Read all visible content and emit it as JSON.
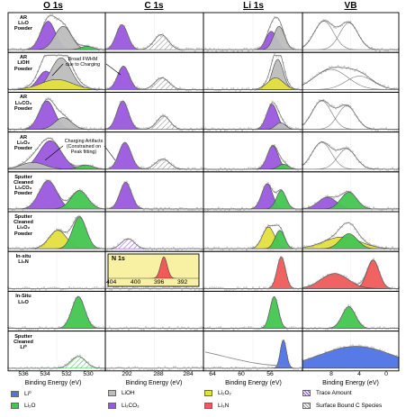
{
  "columns": [
    "O 1s",
    "C 1s",
    "Li 1s",
    "VB"
  ],
  "rows": [
    {
      "label": "AR\nLi₂O\nPowder"
    },
    {
      "label": "AR\nLiOH\nPowder"
    },
    {
      "label": "AR\nLi₂CO₃\nPowder"
    },
    {
      "label": "AR\nLi₂O₂\nPowder"
    },
    {
      "label": "Sputter\nCleaned\nLi₂CO₃\nPowder"
    },
    {
      "label": "Sputter\nCleaned\nLi₂O₂\nPowder"
    },
    {
      "label": "In-situ\nLi₃N"
    },
    {
      "label": "In-Situ\nLi₂O"
    },
    {
      "label": "Sputter\nCleaned\nLi⁰"
    }
  ],
  "annotations": {
    "broad_fwhm": "Broad FWHM\ndue to Charging",
    "charging_artifacts": "Charging Artifacts\n(Constrained on\nPeak fitting)"
  },
  "inset": {
    "title": "N 1s",
    "ticks": [
      "404",
      "400",
      "396",
      "392"
    ]
  },
  "axes": [
    {
      "ticks": [
        "536",
        "534",
        "532",
        "530"
      ],
      "xlabel": "Binding Energy (eV)"
    },
    {
      "ticks": [
        "292",
        "288",
        "284"
      ],
      "xlabel": "Binding Energy (eV)"
    },
    {
      "ticks": [
        "64",
        "60",
        "56"
      ],
      "xlabel": "Binding Energy (eV)"
    },
    {
      "ticks": [
        "8",
        "4",
        "0"
      ],
      "xlabel": "Binding Energy (eV)"
    }
  ],
  "legend": [
    {
      "label": "Li⁰",
      "color": "#4f73e6",
      "type": "solid"
    },
    {
      "label": "LiOH",
      "color": "#bdbdbd",
      "type": "solid"
    },
    {
      "label": "Li₂O₂",
      "color": "#e3df3f",
      "type": "solid"
    },
    {
      "label": "Trace Amount",
      "color": "#8d52e0",
      "type": "hatch"
    },
    {
      "label": "Li₂O",
      "color": "#43c651",
      "type": "solid"
    },
    {
      "label": "Li₂CO₃",
      "color": "#9b58df",
      "type": "solid"
    },
    {
      "label": "Li₃N",
      "color": "#f05a5a",
      "type": "solid"
    },
    {
      "label": "Surface Bound C Species",
      "color": "#9a9a9a",
      "type": "hatch"
    }
  ],
  "colors": {
    "li0": "#4f73e6",
    "lioh": "#bdbdbd",
    "li2o2": "#e3df3f",
    "li2o": "#43c651",
    "li2co3": "#9b58df",
    "li3n": "#f05a5a",
    "inset_bg": "#f8f1a4",
    "envelope": "#555555"
  },
  "chart_data": {
    "type": "area",
    "panels_layout": "9 rows x 4 columns of XPS spectra",
    "columns": [
      {
        "name": "O 1s",
        "xlim": [
          537.5,
          528.5
        ],
        "x_reversed": true
      },
      {
        "name": "C 1s",
        "xlim": [
          295,
          282
        ],
        "x_reversed": true
      },
      {
        "name": "Li 1s",
        "xlim": [
          66,
          52
        ],
        "x_reversed": true
      },
      {
        "name": "VB",
        "xlim": [
          12.5,
          -1
        ],
        "x_reversed": true
      }
    ],
    "peaks": [
      {
        "row": 0,
        "col": 0,
        "components": [
          {
            "species": "li2co3",
            "center": 533.8,
            "fwhm": 1.6,
            "amp": 0.85
          },
          {
            "species": "lioh",
            "center": 532.4,
            "fwhm": 1.8,
            "amp": 0.7
          },
          {
            "species": "li2o",
            "center": 530.2,
            "fwhm": 1.4,
            "amp": 0.1
          }
        ]
      },
      {
        "row": 0,
        "col": 1,
        "components": [
          {
            "species": "li2co3",
            "center": 292.8,
            "fwhm": 1.8,
            "amp": 0.75
          },
          {
            "species": "surface_c",
            "center": 287.6,
            "fwhm": 2.2,
            "amp": 0.45
          }
        ]
      },
      {
        "row": 0,
        "col": 2,
        "components": [
          {
            "species": "li2co3",
            "center": 56.4,
            "fwhm": 1.8,
            "amp": 0.55
          },
          {
            "species": "lioh",
            "center": 55.3,
            "fwhm": 1.8,
            "amp": 0.7
          }
        ]
      },
      {
        "row": 0,
        "col": 3,
        "components": [
          {
            "species": "envelope",
            "center": 9.5,
            "fwhm": 3.2,
            "amp": 0.85
          },
          {
            "species": "envelope",
            "center": 6.0,
            "fwhm": 3.0,
            "amp": 0.8
          }
        ]
      },
      {
        "row": 1,
        "col": 0,
        "components": [
          {
            "species": "li2co3",
            "center": 534.0,
            "fwhm": 1.7,
            "amp": 0.55
          },
          {
            "species": "lioh",
            "center": 532.6,
            "fwhm": 2.2,
            "amp": 0.95
          },
          {
            "species": "li2o2",
            "center": 533.0,
            "fwhm": 3.4,
            "amp": 0.3
          }
        ]
      },
      {
        "row": 1,
        "col": 1,
        "components": [
          {
            "species": "li2co3",
            "center": 292.6,
            "fwhm": 1.8,
            "amp": 0.7
          },
          {
            "species": "surface_c",
            "center": 287.5,
            "fwhm": 2.2,
            "amp": 0.35
          }
        ]
      },
      {
        "row": 1,
        "col": 2,
        "components": [
          {
            "species": "lioh",
            "center": 55.5,
            "fwhm": 1.8,
            "amp": 0.9
          },
          {
            "species": "li2o2",
            "center": 55.8,
            "fwhm": 2.6,
            "amp": 0.35
          }
        ]
      },
      {
        "row": 1,
        "col": 3,
        "components": [
          {
            "species": "envelope",
            "center": 8.5,
            "fwhm": 5.5,
            "amp": 0.6
          },
          {
            "species": "envelope",
            "center": 4.5,
            "fwhm": 4.5,
            "amp": 0.4
          }
        ]
      },
      {
        "row": 2,
        "col": 0,
        "components": [
          {
            "species": "li2co3",
            "center": 533.9,
            "fwhm": 1.7,
            "amp": 0.85
          },
          {
            "species": "lioh",
            "center": 532.4,
            "fwhm": 1.8,
            "amp": 0.35
          }
        ]
      },
      {
        "row": 2,
        "col": 1,
        "components": [
          {
            "species": "li2co3",
            "center": 292.7,
            "fwhm": 1.8,
            "amp": 0.85
          },
          {
            "species": "surface_c",
            "center": 287.3,
            "fwhm": 2.0,
            "amp": 0.4
          }
        ]
      },
      {
        "row": 2,
        "col": 2,
        "components": [
          {
            "species": "li2co3",
            "center": 56.3,
            "fwhm": 1.8,
            "amp": 0.75
          },
          {
            "species": "lioh",
            "center": 55.1,
            "fwhm": 1.6,
            "amp": 0.2
          }
        ]
      },
      {
        "row": 2,
        "col": 3,
        "components": [
          {
            "species": "envelope",
            "center": 9.8,
            "fwhm": 3.2,
            "amp": 0.85
          },
          {
            "species": "envelope",
            "center": 6.3,
            "fwhm": 3.0,
            "amp": 0.7
          }
        ]
      },
      {
        "row": 3,
        "col": 0,
        "components": [
          {
            "species": "li2co3",
            "center": 533.6,
            "fwhm": 2.4,
            "amp": 0.85
          },
          {
            "species": "lioh",
            "center": 535.2,
            "fwhm": 2.6,
            "amp": 0.2
          },
          {
            "species": "li2o",
            "center": 530.3,
            "fwhm": 1.6,
            "amp": 0.12
          }
        ]
      },
      {
        "row": 3,
        "col": 1,
        "components": [
          {
            "species": "li2co3",
            "center": 292.4,
            "fwhm": 1.9,
            "amp": 0.8
          },
          {
            "species": "surface_c",
            "center": 287.4,
            "fwhm": 2.2,
            "amp": 0.3
          }
        ]
      },
      {
        "row": 3,
        "col": 2,
        "components": [
          {
            "species": "li2co3",
            "center": 56.2,
            "fwhm": 1.8,
            "amp": 0.7
          },
          {
            "species": "li2o",
            "center": 54.7,
            "fwhm": 1.6,
            "amp": 0.15
          }
        ]
      },
      {
        "row": 3,
        "col": 3,
        "components": [
          {
            "species": "envelope",
            "center": 9.8,
            "fwhm": 3.2,
            "amp": 0.8
          },
          {
            "species": "envelope",
            "center": 6.3,
            "fwhm": 3.0,
            "amp": 0.6
          }
        ]
      },
      {
        "row": 4,
        "col": 0,
        "components": [
          {
            "species": "li2co3",
            "center": 533.8,
            "fwhm": 1.9,
            "amp": 0.85
          },
          {
            "species": "li2o",
            "center": 530.9,
            "fwhm": 1.8,
            "amp": 0.55
          }
        ]
      },
      {
        "row": 4,
        "col": 1,
        "components": [
          {
            "species": "li2co3",
            "center": 292.3,
            "fwhm": 1.8,
            "amp": 0.8
          }
        ]
      },
      {
        "row": 4,
        "col": 2,
        "components": [
          {
            "species": "li2co3",
            "center": 57.0,
            "fwhm": 1.8,
            "amp": 0.75
          },
          {
            "species": "li2o",
            "center": 55.0,
            "fwhm": 1.6,
            "amp": 0.55
          }
        ]
      },
      {
        "row": 4,
        "col": 3,
        "components": [
          {
            "species": "li2co3",
            "center": 9.0,
            "fwhm": 3.0,
            "amp": 0.35
          },
          {
            "species": "li2o",
            "center": 6.0,
            "fwhm": 2.6,
            "amp": 0.5
          }
        ]
      },
      {
        "row": 5,
        "col": 0,
        "components": [
          {
            "species": "li2o2",
            "center": 532.9,
            "fwhm": 1.9,
            "amp": 0.55
          },
          {
            "species": "li2o",
            "center": 530.9,
            "fwhm": 1.5,
            "amp": 0.95
          }
        ]
      },
      {
        "row": 5,
        "col": 1,
        "components": [
          {
            "species": "trace",
            "center": 292.0,
            "fwhm": 2.0,
            "amp": 0.3
          }
        ]
      },
      {
        "row": 5,
        "col": 2,
        "components": [
          {
            "species": "li2o2",
            "center": 56.8,
            "fwhm": 2.0,
            "amp": 0.65
          },
          {
            "species": "li2o",
            "center": 55.2,
            "fwhm": 1.6,
            "amp": 0.55
          }
        ]
      },
      {
        "row": 5,
        "col": 3,
        "components": [
          {
            "species": "li2o2",
            "center": 7.0,
            "fwhm": 6.0,
            "amp": 0.35
          },
          {
            "species": "li2o",
            "center": 6.0,
            "fwhm": 2.8,
            "amp": 0.45
          }
        ]
      },
      {
        "row": 6,
        "col": 0,
        "components": []
      },
      {
        "row": 6,
        "col": 1,
        "components": []
      },
      {
        "row": 6,
        "col": 2,
        "components": [
          {
            "species": "li3n",
            "center": 55.0,
            "fwhm": 1.4,
            "amp": 0.95
          }
        ]
      },
      {
        "row": 6,
        "col": 3,
        "components": [
          {
            "species": "li3n",
            "center": 2.6,
            "fwhm": 2.0,
            "amp": 0.85
          },
          {
            "species": "li3n",
            "center": 8.0,
            "fwhm": 4.5,
            "amp": 0.45
          }
        ]
      },
      {
        "row": 7,
        "col": 0,
        "components": [
          {
            "species": "li2o",
            "center": 531.0,
            "fwhm": 1.4,
            "amp": 0.95
          }
        ]
      },
      {
        "row": 7,
        "col": 1,
        "components": []
      },
      {
        "row": 7,
        "col": 2,
        "components": [
          {
            "species": "li2o",
            "center": 56.0,
            "fwhm": 1.4,
            "amp": 0.95
          }
        ]
      },
      {
        "row": 7,
        "col": 3,
        "components": [
          {
            "species": "li2o",
            "center": 6.0,
            "fwhm": 2.2,
            "amp": 0.65
          }
        ]
      },
      {
        "row": 8,
        "col": 0,
        "components": [
          {
            "species": "trace_green",
            "center": 531.0,
            "fwhm": 1.6,
            "amp": 0.35
          }
        ]
      },
      {
        "row": 8,
        "col": 1,
        "components": []
      },
      {
        "row": 8,
        "col": 2,
        "components": [
          {
            "species": "li0",
            "center": 54.7,
            "fwhm": 1.0,
            "amp": 0.85
          }
        ]
      },
      {
        "row": 8,
        "col": 3,
        "components": [
          {
            "species": "li0",
            "center": 5.0,
            "fwhm": 12.0,
            "amp": 0.65
          }
        ]
      }
    ],
    "inset_peak": {
      "species": "li3n",
      "center": 396.4,
      "fwhm": 1.2,
      "xlim": [
        405,
        391
      ]
    }
  }
}
